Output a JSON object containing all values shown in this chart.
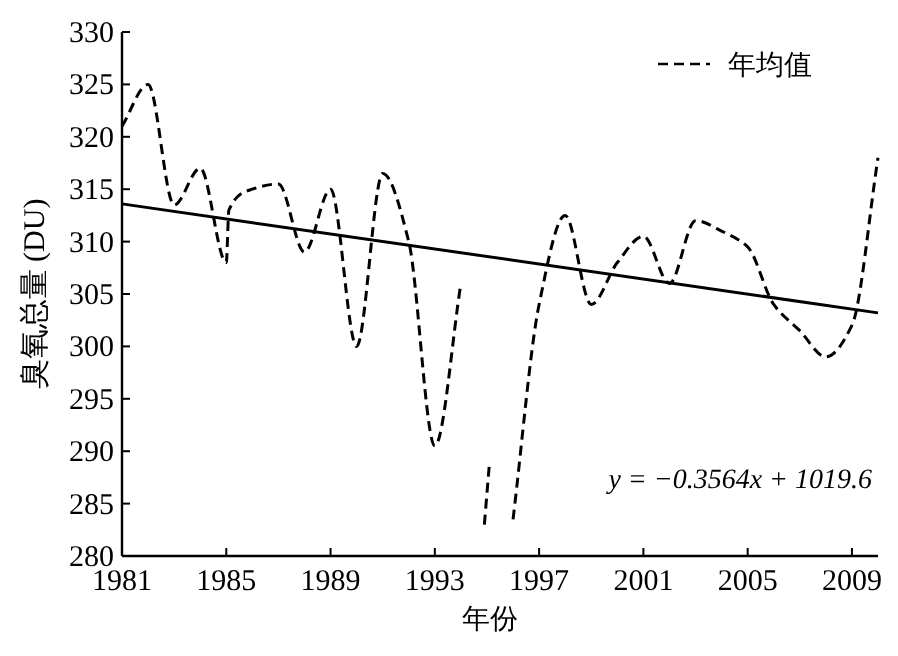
{
  "chart_data": {
    "type": "line",
    "xlabel": "年份",
    "ylabel": "臭氧总量 (DU)",
    "xlim": [
      1981,
      2010
    ],
    "ylim": [
      280,
      330
    ],
    "xticks": [
      1981,
      1985,
      1989,
      1993,
      1997,
      2001,
      2005,
      2009
    ],
    "yticks": [
      280,
      285,
      290,
      295,
      300,
      305,
      310,
      315,
      320,
      325,
      330
    ],
    "legend": "top right",
    "series": [
      {
        "name": "年均值",
        "color": "#000000",
        "line_style": "dashed",
        "x": [
          1981,
          1982,
          1983,
          1984,
          1985,
          1985.1,
          1986,
          1987,
          1988,
          1989,
          1990,
          1991,
          1992,
          1993,
          1994
        ],
        "values": [
          321,
          325,
          313.5,
          317,
          308,
          313,
          315,
          315.5,
          309,
          315,
          300,
          316.5,
          310,
          290.5,
          306
        ]
      },
      {
        "color": "#000000",
        "line_style": "dashed",
        "x": [
          1994.9,
          1995.1
        ],
        "values": [
          283,
          289
        ]
      },
      {
        "color": "#000000",
        "line_style": "dashed",
        "x": [
          1996,
          1997,
          1998,
          1999,
          2000,
          2001,
          2002,
          2003,
          2004,
          2005,
          2006,
          2007,
          2008,
          2009,
          2010
        ],
        "values": [
          283.5,
          304,
          312.5,
          304,
          308,
          310.5,
          306,
          312,
          311,
          309.5,
          304,
          301.5,
          299,
          302,
          318
        ]
      },
      {
        "type": "line",
        "color": "#000000",
        "line_style": "solid",
        "x": [
          1981,
          2010
        ],
        "values": [
          313.6,
          303.2
        ]
      }
    ],
    "annotations": [
      "y = −0.3564x + 1019.6"
    ]
  }
}
